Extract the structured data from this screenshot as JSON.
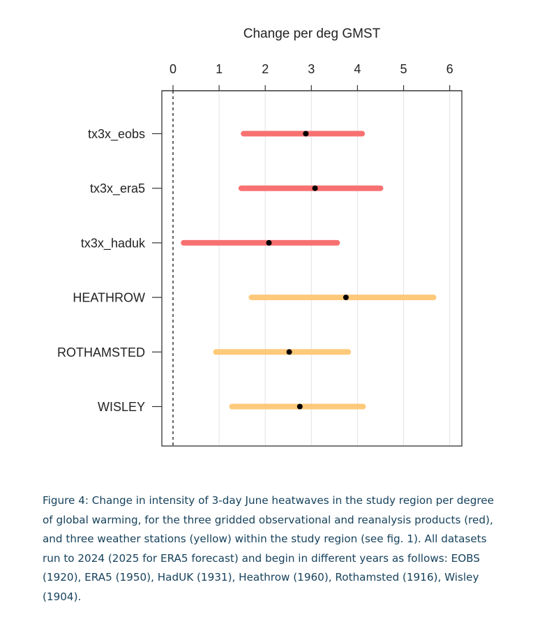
{
  "chart_data": {
    "type": "interval",
    "title": "Change per deg GMST",
    "xlim": [
      0,
      6
    ],
    "x_ticks": [
      "0",
      "1",
      "2",
      "3",
      "4",
      "5",
      "6"
    ],
    "reference_line": 0,
    "grid": "vertical",
    "categories": [
      "tx3x_eobs",
      "tx3x_era5",
      "tx3x_haduk",
      "HEATHROW",
      "ROTHAMSTED",
      "WISLEY"
    ],
    "series": [
      {
        "label": "tx3x_eobs",
        "estimate": 2.88,
        "lower": 1.53,
        "upper": 4.1,
        "color": "#f87171"
      },
      {
        "label": "tx3x_era5",
        "estimate": 3.08,
        "lower": 1.48,
        "upper": 4.5,
        "color": "#f87171"
      },
      {
        "label": "tx3x_haduk",
        "estimate": 2.08,
        "lower": 0.23,
        "upper": 3.56,
        "color": "#f87171"
      },
      {
        "label": "HEATHROW",
        "estimate": 3.75,
        "lower": 1.7,
        "upper": 5.65,
        "color": "#fdc97a"
      },
      {
        "label": "ROTHAMSTED",
        "estimate": 2.52,
        "lower": 0.93,
        "upper": 3.8,
        "color": "#fdc97a"
      },
      {
        "label": "WISLEY",
        "estimate": 2.75,
        "lower": 1.28,
        "upper": 4.12,
        "color": "#fdc97a"
      }
    ]
  },
  "caption": "Figure 4: Change in intensity of 3-day June heatwaves in the study region per degree of global warming, for the three gridded observational and reanalysis products (red), and three weather stations (yellow) within the study region (see fig. 1). All datasets run to 2024 (2025 for ERA5 forecast) and begin in different years as follows: EOBS (1920), ERA5 (1950), HadUK (1931), Heathrow (1960), Rothamsted (1916), Wisley (1904)."
}
